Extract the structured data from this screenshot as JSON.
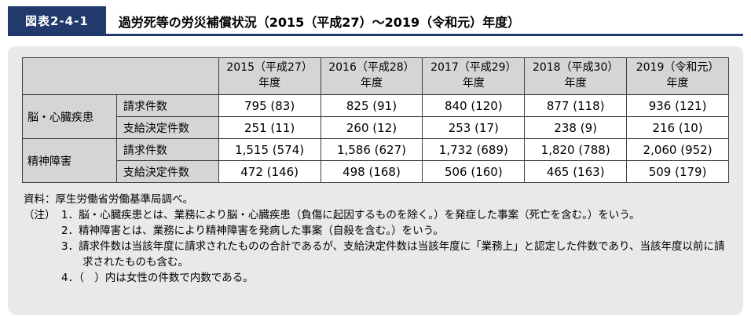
{
  "colors": {
    "accent_navy": "#213a6b",
    "panel_gray": "#e9e9e9",
    "header_cell_gray": "#d5d5d5",
    "border_gray": "#404040"
  },
  "header": {
    "figure_label": "図表2-4-1",
    "title": "過労死等の労災補償状況（2015（平成27）～2019（令和元）年度）"
  },
  "table": {
    "year_headers": [
      "2015（平成27）\n年度",
      "2016（平成28）\n年度",
      "2017（平成29）\n年度",
      "2018（平成30）\n年度",
      "2019（令和元）\n年度"
    ],
    "rows": [
      {
        "group": "脳・心臓疾患",
        "label": "請求件数",
        "values": [
          "795 (83)",
          "825 (91)",
          "840 (120)",
          "877 (118)",
          "936 (121)"
        ]
      },
      {
        "group": "",
        "label": "支給決定件数",
        "values": [
          "251 (11)",
          "260 (12)",
          "253 (17)",
          "238 (9)",
          "216 (10)"
        ]
      },
      {
        "group": "精神障害",
        "label": "請求件数",
        "values": [
          "1,515 (574)",
          "1,586 (627)",
          "1,732 (689)",
          "1,820 (788)",
          "2,060 (952)"
        ]
      },
      {
        "group": "",
        "label": "支給決定件数",
        "values": [
          "472 (146)",
          "498 (168)",
          "506 (160)",
          "465 (163)",
          "509 (179)"
        ]
      }
    ]
  },
  "notes": {
    "source": "資料：厚生労働省労働基準局調べ。",
    "label": "（注）",
    "items": [
      "1．脳・心臓疾患とは、業務により脳・心臓疾患（負傷に起因するものを除く。）を発症した事案（死亡を含む。）をいう。",
      "2．精神障害とは、業務により精神障害を発病した事案（自殺を含む。）をいう。",
      "3．請求件数は当該年度に請求されたものの合計であるが、支給決定件数は当該年度に「業務上」と認定した件数であり、当該年度以前に請求されたものも含む。",
      "4．（　）内は女性の件数で内数である。"
    ]
  }
}
